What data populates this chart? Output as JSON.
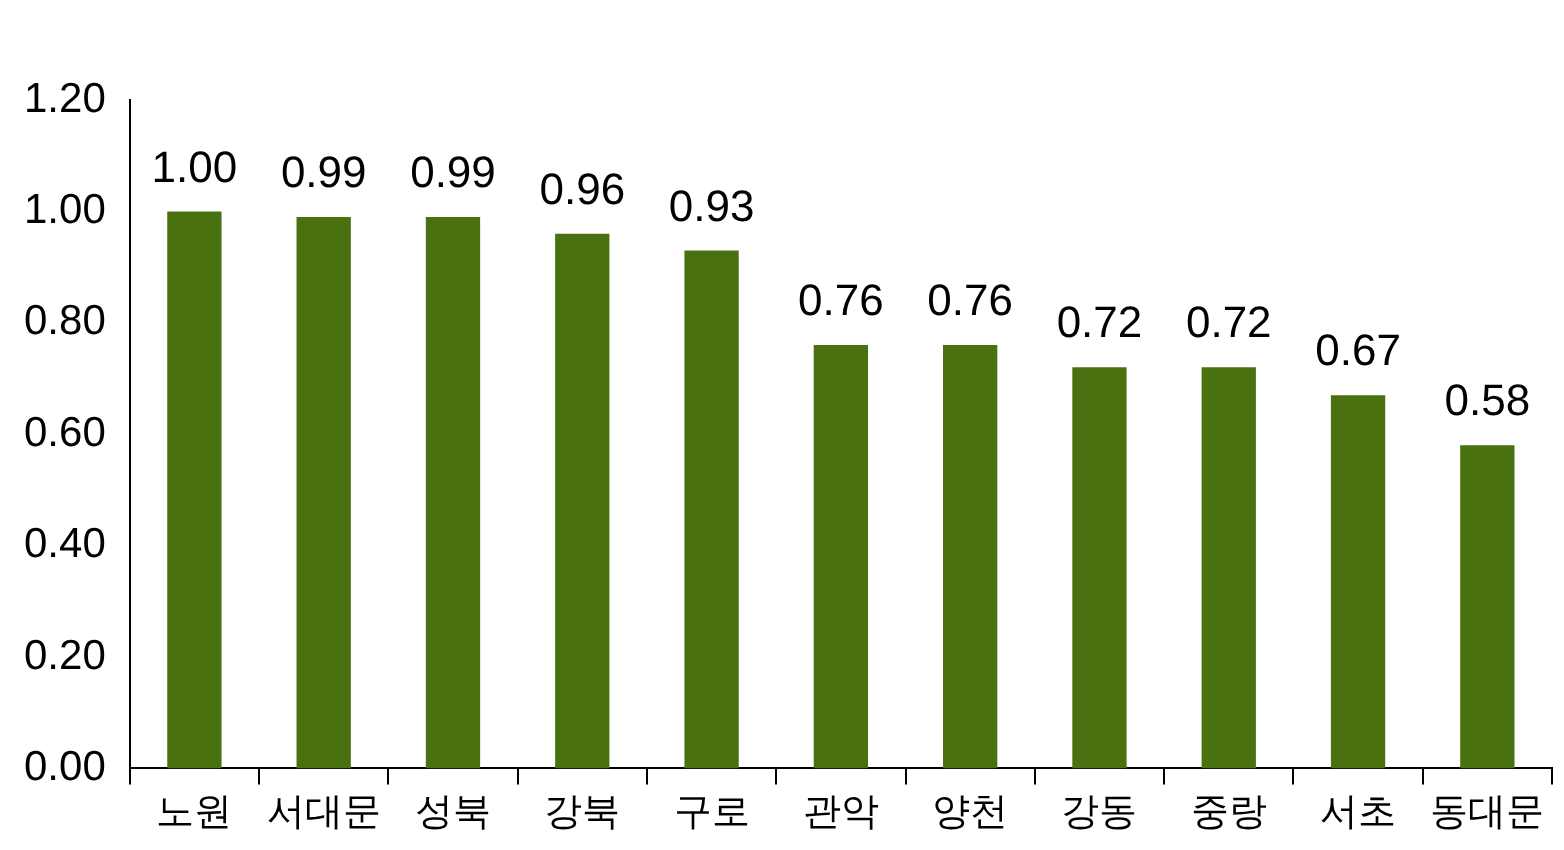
{
  "chart_data": {
    "type": "bar",
    "categories": [
      "노원",
      "서대문",
      "성북",
      "강북",
      "구로",
      "관악",
      "양천",
      "강동",
      "중랑",
      "서초",
      "동대문"
    ],
    "values": [
      1.0,
      0.99,
      0.99,
      0.96,
      0.93,
      0.76,
      0.76,
      0.72,
      0.72,
      0.67,
      0.58
    ],
    "value_labels": [
      "1.00",
      "0.99",
      "0.99",
      "0.96",
      "0.93",
      "0.76",
      "0.76",
      "0.72",
      "0.72",
      "0.67",
      "0.58"
    ],
    "color": "#4a7110",
    "ylim": [
      0,
      1.2
    ],
    "yticks": [
      {
        "value": 0,
        "label": "0.00"
      },
      {
        "value": 0.2,
        "label": "0.20"
      },
      {
        "value": 0.4,
        "label": "0.40"
      },
      {
        "value": 0.6,
        "label": "0.60"
      },
      {
        "value": 0.8,
        "label": "0.80"
      },
      {
        "value": 1.0,
        "label": "1.00"
      },
      {
        "value": 1.2,
        "label": "1.20"
      }
    ],
    "grid": false,
    "legend": false
  }
}
